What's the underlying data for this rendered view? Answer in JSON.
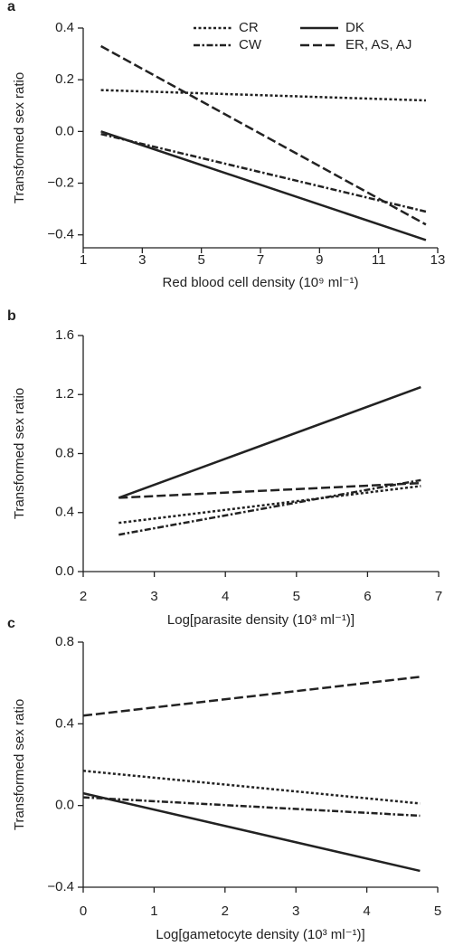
{
  "chart_data": [
    {
      "type": "line",
      "panel_label": "a",
      "y_label": "Transformed sex ratio",
      "x_label": "Red blood cell density (10⁹ ml⁻¹)",
      "xlim": [
        1,
        13
      ],
      "xticks": [
        1,
        3,
        5,
        7,
        9,
        11,
        13
      ],
      "ylim": [
        -0.45,
        0.4
      ],
      "yticks": [
        {
          "value": -0.4,
          "label": "−0.4"
        },
        {
          "value": -0.2,
          "label": "−0.2"
        },
        {
          "value": 0,
          "label": "0.0"
        },
        0.2,
        0.4
      ],
      "legend": "top-right",
      "x": [
        1.6,
        12.6
      ],
      "series": [
        {
          "name": "CR",
          "color": "#222222",
          "dash": "dotted",
          "values": [
            0.16,
            0.12
          ]
        },
        {
          "name": "CW",
          "color": "#222222",
          "dash": "dash-dot",
          "values": [
            -0.01,
            -0.31
          ]
        },
        {
          "name": "DK",
          "color": "#222222",
          "dash": "solid",
          "values": [
            0.0,
            -0.42
          ]
        },
        {
          "name": "ER, AS, AJ",
          "color": "#222222",
          "dash": "dashed",
          "values": [
            0.33,
            -0.36
          ]
        }
      ]
    },
    {
      "type": "line",
      "panel_label": "b",
      "y_label": "Transformed sex ratio",
      "x_label": "Log[parasite density (10³ ml⁻¹)]",
      "xlim": [
        2,
        7
      ],
      "xticks": [
        2,
        3,
        4,
        5,
        6,
        7
      ],
      "ylim": [
        0,
        1.6
      ],
      "yticks": [
        {
          "value": 0,
          "label": "0.0"
        },
        0.4,
        0.8,
        1.2,
        1.6
      ],
      "x": [
        2.5,
        6.75
      ],
      "series": [
        {
          "color": "#222222",
          "dash": "dotted",
          "values": [
            0.33,
            0.58
          ]
        },
        {
          "color": "#222222",
          "dash": "dash-dot",
          "values": [
            0.25,
            0.62
          ]
        },
        {
          "color": "#222222",
          "dash": "solid",
          "values": [
            0.5,
            1.25
          ]
        },
        {
          "color": "#222222",
          "dash": "dashed",
          "values": [
            0.5,
            0.6
          ]
        }
      ]
    },
    {
      "type": "line",
      "panel_label": "c",
      "y_label": "Transformed sex ratio",
      "x_label": "Log[gametocyte density (10³ ml⁻¹)]",
      "xlim": [
        0,
        5
      ],
      "xticks": [
        0,
        1,
        2,
        3,
        4,
        5
      ],
      "ylim": [
        -0.4,
        0.8
      ],
      "yticks": [
        {
          "value": -0.4,
          "label": "−0.4"
        },
        {
          "value": 0,
          "label": "0.0"
        },
        0.4,
        0.8
      ],
      "x": [
        0,
        4.75
      ],
      "series": [
        {
          "color": "#222222",
          "dash": "dotted",
          "values": [
            0.17,
            0.01
          ]
        },
        {
          "color": "#222222",
          "dash": "dash-dot",
          "values": [
            0.04,
            -0.05
          ]
        },
        {
          "color": "#222222",
          "dash": "solid",
          "values": [
            0.06,
            -0.32
          ]
        },
        {
          "color": "#222222",
          "dash": "dashed",
          "values": [
            0.44,
            0.63
          ]
        }
      ]
    }
  ]
}
